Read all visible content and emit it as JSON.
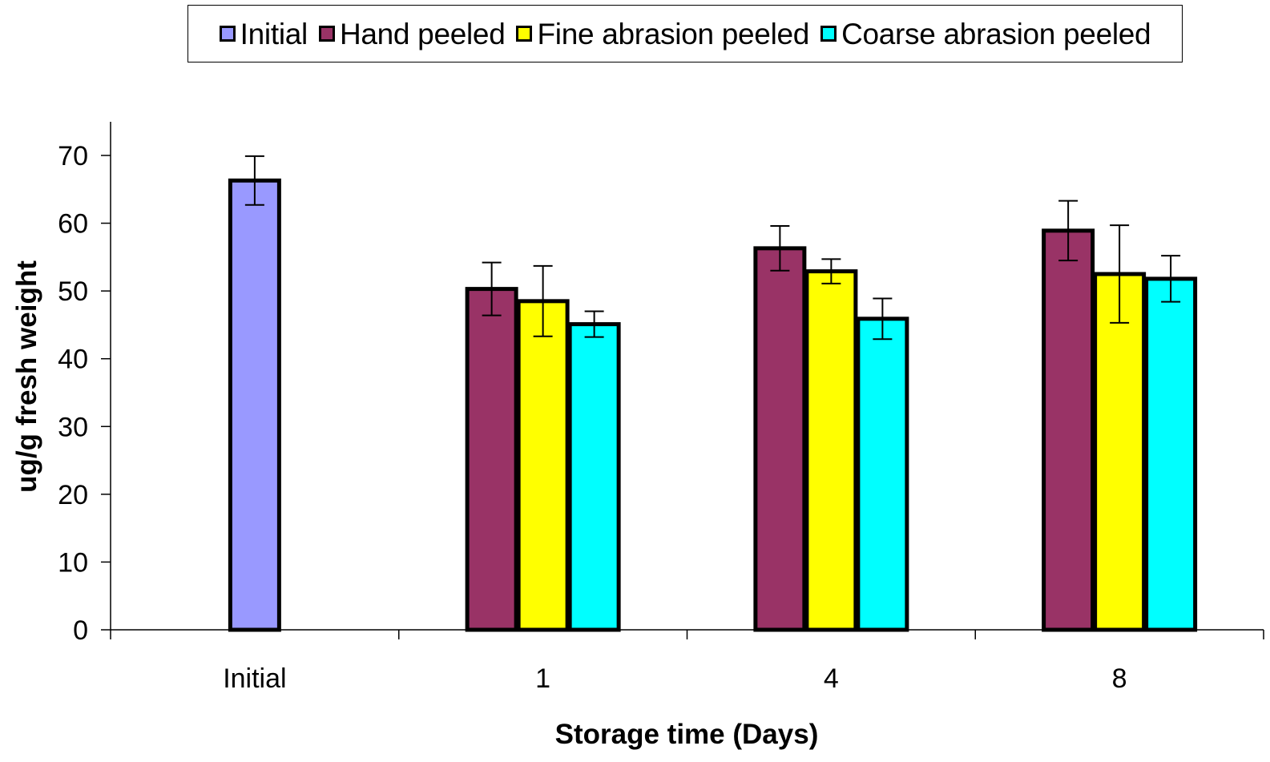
{
  "chart_data": {
    "type": "bar",
    "title": "",
    "xlabel": "Storage time (Days)",
    "ylabel": "ug/g fresh weight",
    "ylim": [
      0,
      70
    ],
    "yticks": [
      0,
      10,
      20,
      30,
      40,
      50,
      60,
      70
    ],
    "grid": false,
    "legend_position": "top",
    "categories": [
      "Initial",
      "1",
      "4",
      "8"
    ],
    "series": [
      {
        "name": "Initial",
        "color": "#9999ff",
        "values": [
          66.3,
          null,
          null,
          null
        ],
        "errors": [
          3.6,
          null,
          null,
          null
        ]
      },
      {
        "name": "Hand peeled",
        "color": "#993366",
        "values": [
          null,
          50.3,
          56.3,
          58.9
        ],
        "errors": [
          null,
          3.9,
          3.3,
          4.4
        ]
      },
      {
        "name": "Fine abrasion peeled",
        "color": "#ffff00",
        "values": [
          null,
          48.5,
          52.9,
          52.5
        ],
        "errors": [
          null,
          5.2,
          1.8,
          7.2
        ]
      },
      {
        "name": "Coarse abrasion peeled",
        "color": "#00ffff",
        "values": [
          null,
          45.1,
          45.9,
          51.8
        ],
        "errors": [
          null,
          1.9,
          3.0,
          3.4
        ]
      }
    ]
  }
}
